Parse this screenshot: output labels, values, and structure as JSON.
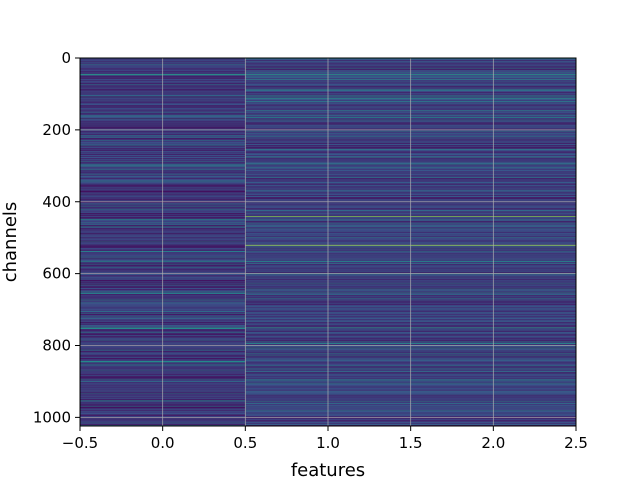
{
  "chart_data": {
    "type": "heatmap",
    "title": "",
    "xlabel": "features",
    "ylabel": "channels",
    "xlim": [
      -0.5,
      2.5
    ],
    "ylim": [
      1024,
      0
    ],
    "y_inverted": true,
    "grid": true,
    "colormap": "viridis",
    "value_range": [
      0,
      1
    ],
    "n_columns": 3,
    "n_rows": 1024,
    "x_ticks": [
      -0.5,
      0.0,
      0.5,
      1.0,
      1.5,
      2.0,
      2.5
    ],
    "x_tick_labels": [
      "−0.5",
      "0.0",
      "0.5",
      "1.0",
      "1.5",
      "2.0",
      "2.5"
    ],
    "y_ticks": [
      0,
      200,
      400,
      600,
      800,
      1000
    ],
    "y_tick_labels": [
      "0",
      "200",
      "400",
      "600",
      "800",
      "1000"
    ],
    "column_groups": [
      {
        "columns": [
          0
        ],
        "mean_level": 0.17
      },
      {
        "columns": [
          1,
          2
        ],
        "mean_level": 0.2
      }
    ],
    "highlights": [
      {
        "channel": 440,
        "columns": [
          1,
          2
        ],
        "value": 0.85
      },
      {
        "channel": 520,
        "columns": [
          1,
          2
        ],
        "value": 0.92
      },
      {
        "channel": 750,
        "columns": [
          0,
          1,
          2
        ],
        "value": 0.55
      },
      {
        "channel": 565,
        "columns": [
          0,
          1,
          2
        ],
        "value": 0.5
      },
      {
        "channel": 45,
        "columns": [
          0,
          1,
          2
        ],
        "value": 0.55
      },
      {
        "channel": 165,
        "columns": [
          1,
          2
        ],
        "value": 0.5
      }
    ],
    "colors": {
      "low": "#440154",
      "mid": "#3b528b",
      "teal": "#21918c",
      "green": "#5ec962",
      "high": "#fde725",
      "grid": "#b0b0b0"
    }
  }
}
